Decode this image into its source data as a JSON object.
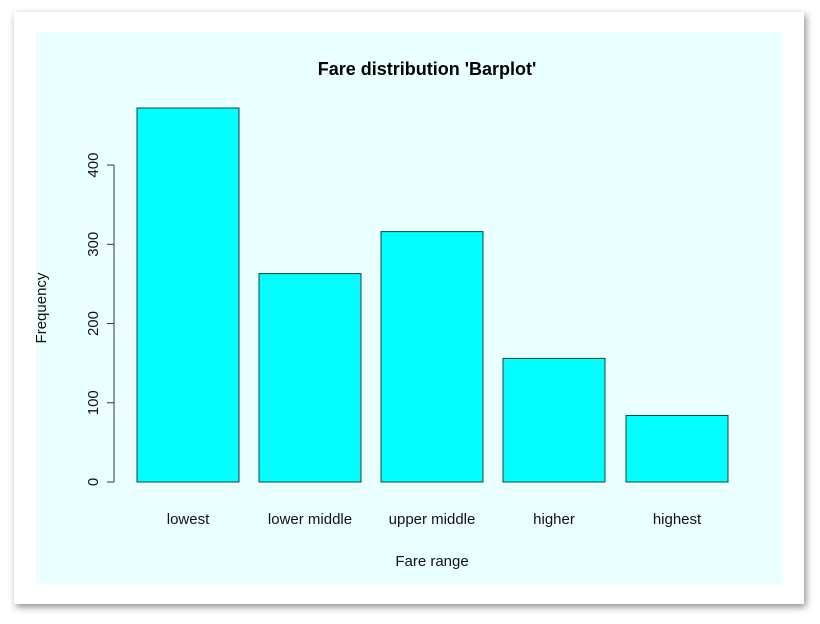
{
  "chart_data": {
    "type": "bar",
    "title": "Fare distribution 'Barplot'",
    "xlabel": "Fare range",
    "ylabel": "Frequency",
    "categories": [
      "lowest",
      "lower middle",
      "upper middle",
      "higher",
      "highest"
    ],
    "values": [
      472,
      263,
      316,
      156,
      84
    ],
    "ylim": [
      0,
      472
    ],
    "yticks": [
      0,
      100,
      200,
      300,
      400
    ],
    "grid": false,
    "colors": {
      "bar_fill": "#00ffff",
      "bar_stroke": "#1a3c3c",
      "panel_background": "#eaffff"
    }
  }
}
